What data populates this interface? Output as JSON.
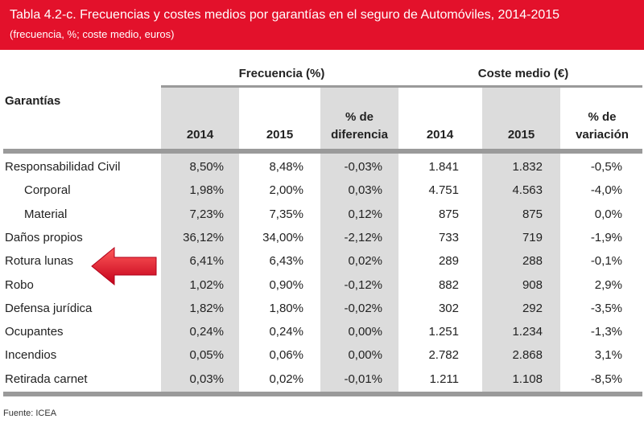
{
  "title": "Tabla 4.2-c.  Frecuencias y costes medios por garantías en el seguro de Automóviles, 2014-2015",
  "subtitle": "(frecuencia, %; coste medio, euros)",
  "group_headers": {
    "frecuencia": "Frecuencia (%)",
    "coste": "Coste medio (€)"
  },
  "col_headers": {
    "garantias": "Garantías",
    "f2014": "2014",
    "f2015": "2015",
    "fdiff_line1": "% de",
    "fdiff_line2": "diferencia",
    "c2014": "2014",
    "c2015": "2015",
    "cvar_line1": "% de",
    "cvar_line2": "variación"
  },
  "rows": [
    {
      "label": "Responsabilidad Civil",
      "indent": false,
      "f2014": "8,50%",
      "f2015": "8,48%",
      "fdiff": "-0,03%",
      "c2014": "1.841",
      "c2015": "1.832",
      "cvar": "-0,5%"
    },
    {
      "label": "Corporal",
      "indent": true,
      "f2014": "1,98%",
      "f2015": "2,00%",
      "fdiff": "0,03%",
      "c2014": "4.751",
      "c2015": "4.563",
      "cvar": "-4,0%"
    },
    {
      "label": "Material",
      "indent": true,
      "f2014": "7,23%",
      "f2015": "7,35%",
      "fdiff": "0,12%",
      "c2014": "875",
      "c2015": "875",
      "cvar": "0,0%"
    },
    {
      "label": "Daños propios",
      "indent": false,
      "f2014": "36,12%",
      "f2015": "34,00%",
      "fdiff": "-2,12%",
      "c2014": "733",
      "c2015": "719",
      "cvar": "-1,9%"
    },
    {
      "label": "Rotura lunas",
      "indent": false,
      "f2014": "6,41%",
      "f2015": "6,43%",
      "fdiff": "0,02%",
      "c2014": "289",
      "c2015": "288",
      "cvar": "-0,1%"
    },
    {
      "label": "Robo",
      "indent": false,
      "f2014": "1,02%",
      "f2015": "0,90%",
      "fdiff": "-0,12%",
      "c2014": "882",
      "c2015": "908",
      "cvar": "2,9%"
    },
    {
      "label": "Defensa jurídica",
      "indent": false,
      "f2014": "1,82%",
      "f2015": "1,80%",
      "fdiff": "-0,02%",
      "c2014": "302",
      "c2015": "292",
      "cvar": "-3,5%"
    },
    {
      "label": "Ocupantes",
      "indent": false,
      "f2014": "0,24%",
      "f2015": "0,24%",
      "fdiff": "0,00%",
      "c2014": "1.251",
      "c2015": "1.234",
      "cvar": "-1,3%"
    },
    {
      "label": "Incendios",
      "indent": false,
      "f2014": "0,05%",
      "f2015": "0,06%",
      "fdiff": "0,00%",
      "c2014": "2.782",
      "c2015": "2.868",
      "cvar": "3,1%"
    },
    {
      "label": "Retirada carnet",
      "indent": false,
      "f2014": "0,03%",
      "f2015": "0,02%",
      "fdiff": "-0,01%",
      "c2014": "1.211",
      "c2015": "1.108",
      "cvar": "-8,5%"
    }
  ],
  "source": "Fuente: ICEA",
  "colors": {
    "banner": "#e3112b",
    "gray_column": "#dcdcdc",
    "arrow": "#e3112b"
  }
}
